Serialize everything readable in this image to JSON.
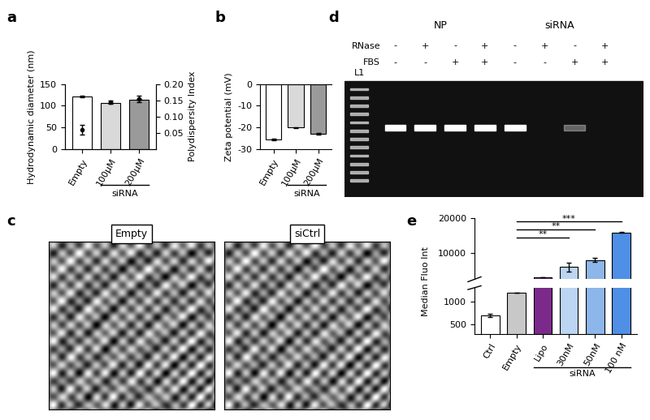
{
  "chart_data": [
    {
      "panel": "a",
      "type": "bar",
      "categories": [
        "Empty",
        "100µM",
        "200µM"
      ],
      "values": [
        121,
        106,
        114
      ],
      "errors": [
        1.5,
        1,
        1
      ],
      "colors": [
        "#ffffff",
        "#d9d9d9",
        "#9a9a9a"
      ],
      "y_label": "Hydrodynamic diameter (nm)",
      "ylim": [
        0,
        150
      ],
      "yticks": [
        0,
        50,
        100,
        150
      ],
      "y2_label": "Polydispersity Index",
      "y2_values": [
        0.06,
        0.145,
        0.155
      ],
      "y2_errors": [
        0.015,
        0.003,
        0.01
      ],
      "y2lim": [
        0,
        0.2
      ],
      "y2ticks": [
        {
          "value": 0.05,
          "label": "0.05"
        },
        {
          "value": 0.1,
          "label": "0.10"
        },
        {
          "value": 0.15,
          "label": "0.15"
        },
        {
          "value": 0.2,
          "label": "0.20"
        }
      ],
      "group": {
        "label": "siRNA",
        "categories": [
          "100µM",
          "200µM"
        ]
      }
    },
    {
      "panel": "b",
      "type": "bar",
      "categories": [
        "Empty",
        "100µM",
        "200µM"
      ],
      "values": [
        -25.5,
        -20,
        -23
      ],
      "errors": [
        0.4,
        0.2,
        0.3
      ],
      "colors": [
        "#ffffff",
        "#d9d9d9",
        "#9a9a9a"
      ],
      "y_label": "Zeta potential (mV)",
      "ylim": [
        -30,
        0
      ],
      "yticks": [
        -30,
        -20,
        -10,
        0
      ],
      "group": {
        "label": "siRNA",
        "categories": [
          "100µM",
          "200µM"
        ]
      }
    },
    {
      "panel": "c",
      "type": "image",
      "images": [
        "Empty",
        "siCtrl"
      ]
    },
    {
      "panel": "d",
      "type": "gel",
      "ladder": "L1",
      "groups": [
        {
          "label": "NP",
          "lanes": 4
        },
        {
          "label": "siRNA",
          "lanes": 4
        }
      ],
      "rows": [
        {
          "label": "RNase",
          "values": [
            "-",
            "+",
            "-",
            "+",
            "-",
            "+",
            "-",
            "+"
          ]
        },
        {
          "label": "FBS",
          "values": [
            "-",
            "-",
            "+",
            "+",
            "-",
            "-",
            "+",
            "+"
          ]
        }
      ],
      "band_intensity": [
        1,
        1,
        1,
        1,
        1,
        0,
        0.35,
        0
      ]
    },
    {
      "panel": "e",
      "type": "bar",
      "categories": [
        "Ctrl",
        "Empty",
        "Lipo",
        "30nM",
        "50nM",
        "100 nM"
      ],
      "values": [
        700,
        1200,
        3000,
        6000,
        8000,
        16000
      ],
      "errors": [
        30,
        0,
        0,
        1200,
        600,
        200
      ],
      "colors": [
        "#ffffff",
        "#c8c8c8",
        "#7b2a8c",
        "#bcd5f2",
        "#8db6ea",
        "#4f8fe6"
      ],
      "y_label": "Median Fluo Int",
      "ylim": [
        300,
        20000
      ],
      "y_break": [
        1300,
        2500
      ],
      "yticks": [
        500,
        1000,
        10000,
        20000
      ],
      "group": {
        "label": "siRNA",
        "categories": [
          "Lipo",
          "30nM",
          "50nM",
          "100 nM"
        ]
      },
      "significance": [
        {
          "from": "Empty",
          "to": "100 nM",
          "label": "***"
        },
        {
          "from": "Empty",
          "to": "50nM",
          "label": "**"
        },
        {
          "from": "Empty",
          "to": "30nM",
          "label": "**"
        }
      ]
    }
  ]
}
